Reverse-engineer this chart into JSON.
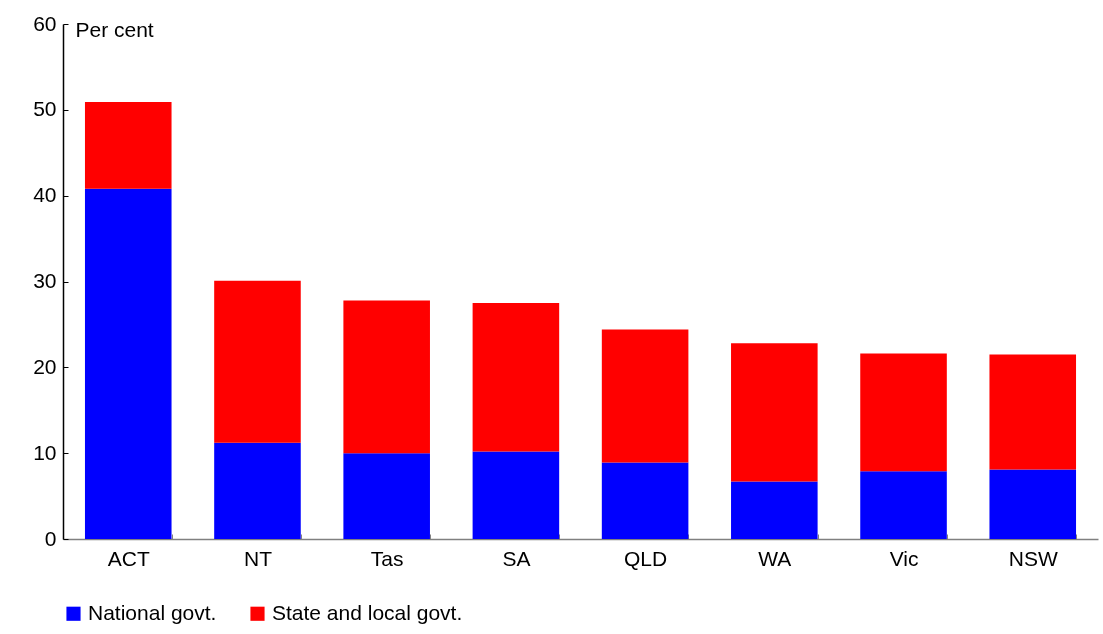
{
  "chart_data": {
    "type": "bar",
    "stacked": true,
    "ylabel": "Per cent",
    "categories": [
      "ACT",
      "NT",
      "Tas",
      "SA",
      "QLD",
      "WA",
      "Vic",
      "NSW"
    ],
    "series": [
      {
        "name": "National govt.",
        "color": "#0000ff",
        "values": [
          40.8,
          11.2,
          10.0,
          10.2,
          8.9,
          6.7,
          7.9,
          8.1
        ]
      },
      {
        "name": "State and local govt.",
        "color": "#ff0000",
        "values": [
          10.1,
          18.9,
          17.8,
          17.3,
          15.5,
          16.1,
          13.7,
          13.4
        ]
      }
    ],
    "ylim": [
      0,
      60
    ],
    "yticks": [
      0,
      10,
      20,
      30,
      40,
      50,
      60
    ],
    "grid": false,
    "legend": "bottom"
  }
}
